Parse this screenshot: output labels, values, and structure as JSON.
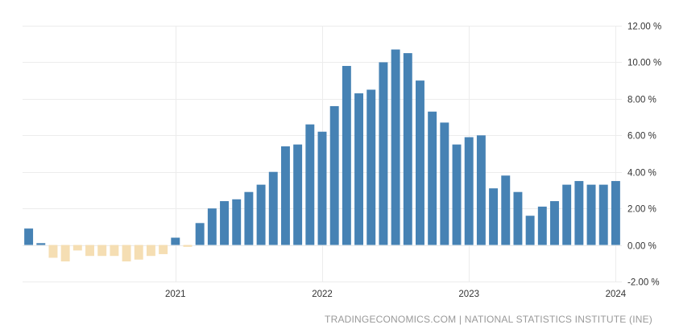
{
  "colors": {
    "positive_bar": "#4682B4",
    "negative_bar": "#F5DEB3",
    "grid": "#ececec",
    "axis_text": "#333333",
    "source_text": "#999999"
  },
  "source": "TRADINGECONOMICS.COM | NATIONAL STATISTICS INSTITUTE (INE)",
  "chart_data": {
    "type": "bar",
    "title": "",
    "xlabel": "",
    "ylabel": "",
    "ylim": [
      -2,
      12
    ],
    "y_ticks": [
      {
        "value": 12,
        "label": "12.00 %"
      },
      {
        "value": 10,
        "label": "10.00 %"
      },
      {
        "value": 8,
        "label": "8.00 %"
      },
      {
        "value": 6,
        "label": "6.00 %"
      },
      {
        "value": 4,
        "label": "4.00 %"
      },
      {
        "value": 2,
        "label": "2.00 %"
      },
      {
        "value": 0,
        "label": "0.00 %"
      },
      {
        "value": -2,
        "label": "-2.00 %"
      }
    ],
    "x_ticks": [
      {
        "category": "2021-01",
        "label": "2021"
      },
      {
        "category": "2022-01",
        "label": "2022"
      },
      {
        "category": "2023-01",
        "label": "2023"
      },
      {
        "category": "2024-01",
        "label": "2024"
      }
    ],
    "grid": true,
    "legend": "none",
    "categories": [
      "2020-01",
      "2020-02",
      "2020-03",
      "2020-04",
      "2020-05",
      "2020-06",
      "2020-07",
      "2020-08",
      "2020-09",
      "2020-10",
      "2020-11",
      "2020-12",
      "2021-01",
      "2021-02",
      "2021-03",
      "2021-04",
      "2021-05",
      "2021-06",
      "2021-07",
      "2021-08",
      "2021-09",
      "2021-10",
      "2021-11",
      "2021-12",
      "2022-01",
      "2022-02",
      "2022-03",
      "2022-04",
      "2022-05",
      "2022-06",
      "2022-07",
      "2022-08",
      "2022-09",
      "2022-10",
      "2022-11",
      "2022-12",
      "2023-01",
      "2023-02",
      "2023-03",
      "2023-04",
      "2023-05",
      "2023-06",
      "2023-07",
      "2023-08",
      "2023-09",
      "2023-10",
      "2023-11",
      "2023-12",
      "2024-01"
    ],
    "values": [
      0.9,
      0.1,
      -0.7,
      -0.9,
      -0.3,
      -0.6,
      -0.6,
      -0.6,
      -0.9,
      -0.8,
      -0.6,
      -0.5,
      0.4,
      -0.1,
      1.2,
      2.0,
      2.4,
      2.5,
      2.9,
      3.3,
      4.0,
      5.4,
      5.5,
      6.6,
      6.2,
      7.6,
      9.8,
      8.3,
      8.5,
      10.0,
      10.7,
      10.5,
      9.0,
      7.3,
      6.7,
      5.5,
      5.9,
      6.0,
      3.1,
      3.8,
      2.9,
      1.6,
      2.1,
      2.4,
      3.3,
      3.5,
      3.3,
      3.3,
      3.5
    ]
  }
}
